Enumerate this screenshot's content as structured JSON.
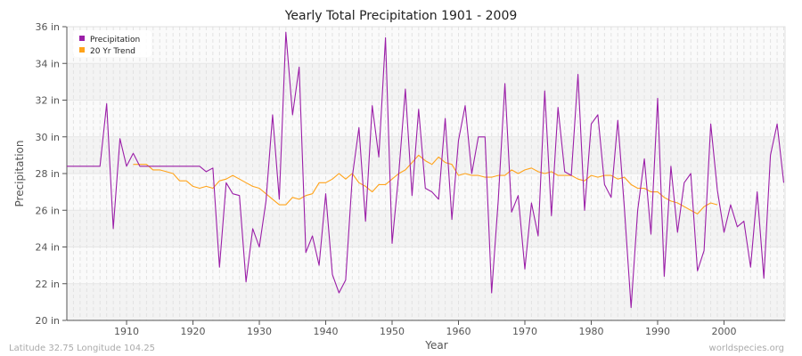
{
  "chart_data": {
    "type": "line",
    "title": "Yearly Total Precipitation 1901 - 2009",
    "xlabel": "Year",
    "ylabel": "Precipitation",
    "xlim": [
      1901,
      2009
    ],
    "ylim": [
      20,
      36
    ],
    "x_ticks": [
      1910,
      1920,
      1930,
      1940,
      1950,
      1960,
      1970,
      1980,
      1990,
      2000
    ],
    "y_ticks": [
      20,
      22,
      24,
      26,
      28,
      30,
      32,
      34,
      36
    ],
    "y_tick_suffix": " in",
    "grid": true,
    "legend_position": "top-left",
    "series": [
      {
        "name": "Precipitation",
        "color": "#9b1fa8",
        "x_start": 1901,
        "values": [
          28.4,
          28.4,
          28.4,
          28.4,
          28.4,
          28.4,
          31.8,
          25.0,
          29.9,
          28.4,
          29.1,
          28.4,
          28.4,
          28.4,
          28.4,
          28.4,
          28.4,
          28.4,
          28.4,
          28.4,
          28.4,
          28.1,
          28.3,
          22.9,
          27.5,
          26.9,
          26.8,
          22.1,
          25.0,
          24.0,
          26.5,
          31.2,
          26.6,
          35.7,
          31.2,
          33.8,
          23.7,
          24.6,
          23.0,
          26.9,
          22.5,
          21.5,
          22.2,
          27.8,
          30.5,
          25.4,
          31.7,
          28.9,
          35.4,
          24.2,
          28.0,
          32.6,
          26.8,
          31.5,
          27.2,
          27.0,
          26.6,
          31.0,
          25.5,
          29.8,
          31.7,
          28.0,
          30.0,
          30.0,
          21.5,
          26.6,
          32.9,
          25.9,
          26.8,
          22.8,
          26.4,
          24.6,
          32.5,
          25.7,
          31.6,
          28.1,
          27.9,
          33.4,
          26.0,
          30.7,
          31.2,
          27.4,
          26.7,
          30.9,
          26.1,
          20.7,
          26.0,
          28.8,
          24.7,
          32.1,
          22.4,
          28.4,
          24.8,
          27.5,
          28.0,
          22.7,
          23.8,
          30.7,
          27.1,
          24.8,
          26.3,
          25.1,
          25.4,
          22.9,
          27.0,
          22.3,
          29.0,
          30.7,
          27.5
        ]
      },
      {
        "name": "20 Yr Trend",
        "color": "#ffa31a",
        "x_start": 1911,
        "values": [
          28.5,
          28.5,
          28.5,
          28.2,
          28.2,
          28.1,
          28.0,
          27.6,
          27.6,
          27.3,
          27.2,
          27.3,
          27.2,
          27.6,
          27.7,
          27.9,
          27.7,
          27.5,
          27.3,
          27.2,
          26.9,
          26.6,
          26.3,
          26.3,
          26.7,
          26.6,
          26.8,
          26.9,
          27.5,
          27.5,
          27.7,
          28.0,
          27.7,
          28.0,
          27.5,
          27.3,
          27.0,
          27.4,
          27.4,
          27.7,
          28.0,
          28.2,
          28.6,
          29.0,
          28.7,
          28.5,
          28.9,
          28.6,
          28.5,
          27.9,
          28.0,
          27.9,
          27.9,
          27.8,
          27.8,
          27.9,
          27.9,
          28.2,
          28.0,
          28.2,
          28.3,
          28.1,
          28.0,
          28.1,
          27.9,
          27.9,
          27.9,
          27.7,
          27.6,
          27.9,
          27.8,
          27.9,
          27.9,
          27.7,
          27.8,
          27.4,
          27.2,
          27.2,
          27.0,
          27.0,
          26.7,
          26.5,
          26.4,
          26.2,
          26.0,
          25.8,
          26.2,
          26.4,
          26.3
        ]
      }
    ]
  },
  "footer": {
    "location": "Latitude 32.75 Longitude 104.25",
    "source": "worldspecies.org"
  }
}
